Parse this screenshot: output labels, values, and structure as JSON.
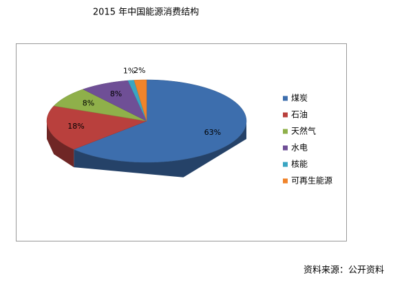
{
  "chart_data": {
    "type": "pie3d",
    "title": "2015 年中国能源消费结构",
    "categories": [
      "煤炭",
      "石油",
      "天然气",
      "水电",
      "核能",
      "可再生能源"
    ],
    "values": [
      63,
      18,
      8,
      8,
      1,
      2
    ],
    "value_labels": [
      "63%",
      "18%",
      "8%",
      "8%",
      "1%",
      "2%"
    ],
    "colors": [
      "#3d6ead",
      "#b9403d",
      "#8fb04a",
      "#6f4f96",
      "#3aa5c2",
      "#f0842b"
    ],
    "legend": "right",
    "source": "资料来源：公开资料"
  }
}
